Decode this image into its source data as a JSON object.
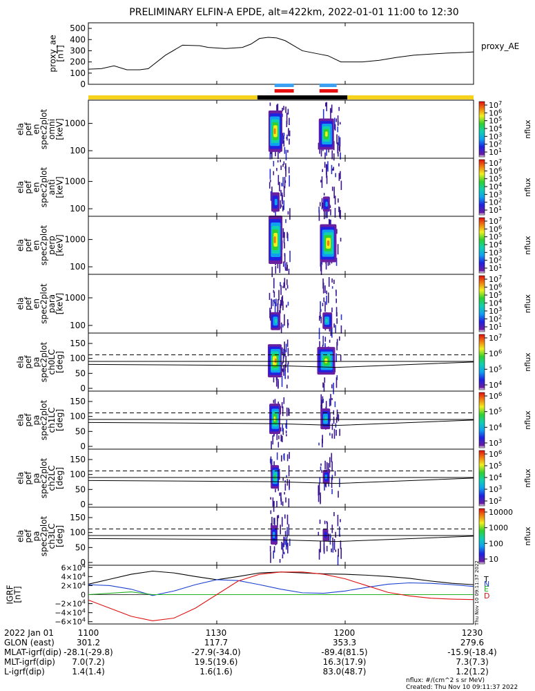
{
  "title": "PRELIMINARY ELFIN-A EPDE, alt=422km, 2022-01-01 11:00 to 12:30",
  "chart_data": [
    {
      "type": "line",
      "panel": "proxy_ae",
      "ylabel": [
        "proxy_ae",
        "[nT]"
      ],
      "legend": "proxy_AE",
      "yticks": [
        "500",
        "400",
        "300",
        "200",
        "100",
        "0"
      ],
      "ylim": [
        0,
        550
      ],
      "x_minutes": [
        0,
        3,
        6,
        9,
        12,
        14,
        18,
        22,
        26,
        28,
        32,
        36,
        38,
        40,
        42,
        44,
        46,
        50,
        54,
        56,
        59,
        62,
        64,
        68,
        72,
        76,
        80,
        84,
        88,
        90
      ],
      "values": [
        135,
        140,
        165,
        130,
        130,
        140,
        260,
        350,
        345,
        330,
        320,
        330,
        360,
        410,
        420,
        415,
        390,
        300,
        270,
        255,
        200,
        200,
        200,
        215,
        240,
        260,
        270,
        280,
        285,
        290
      ]
    },
    {
      "type": "bar",
      "panel": "science_zone_bars",
      "segments": [
        {
          "color": "#3da0f0",
          "from": 43.5,
          "to": 48
        },
        {
          "color": "#e81010",
          "from": 43.5,
          "to": 48
        },
        {
          "color": "#3da0f0",
          "from": 54,
          "to": 58
        },
        {
          "color": "#e81010",
          "from": 54,
          "to": 58.3
        }
      ],
      "colors": [
        "#3da0f0",
        "#e81010"
      ]
    },
    {
      "type": "bar",
      "panel": "sunlight_bar",
      "colors": [
        "#f7d21c",
        "#000000"
      ]
    },
    {
      "type": "heatmap",
      "panel": "spec_omni",
      "ylabel": [
        "ela",
        "pef",
        "en",
        "spec2plot",
        "omni",
        "[keV]"
      ],
      "yticks": [
        "1000",
        "100"
      ],
      "zlabel": "nflux",
      "zticks": [
        "10^7",
        "10^6",
        "10^5",
        "10^4",
        "10^3",
        "10^2",
        "10^1"
      ]
    },
    {
      "type": "heatmap",
      "panel": "spec_anti",
      "ylabel": [
        "ela",
        "pef",
        "en",
        "spec2plot",
        "anti",
        "[keV]"
      ],
      "yticks": [
        "1000",
        "100"
      ],
      "zlabel": "nflux",
      "zticks": [
        "10^7",
        "10^6",
        "10^5",
        "10^4",
        "10^3",
        "10^2",
        "10^1"
      ]
    },
    {
      "type": "heatmap",
      "panel": "spec_perp",
      "ylabel": [
        "ela",
        "pef",
        "en",
        "spec2plot",
        "perp",
        "[keV]"
      ],
      "yticks": [
        "1000",
        "100"
      ],
      "zlabel": "nflux",
      "zticks": [
        "10^7",
        "10^6",
        "10^5",
        "10^4",
        "10^3",
        "10^2",
        "10^1"
      ]
    },
    {
      "type": "heatmap",
      "panel": "spec_para",
      "ylabel": [
        "ela",
        "pef",
        "en",
        "spec2plot",
        "para",
        "[keV]"
      ],
      "yticks": [
        "1000",
        "100"
      ],
      "zlabel": "nflux",
      "zticks": [
        "10^7",
        "10^6",
        "10^5",
        "10^4",
        "10^3",
        "10^2",
        "10^1"
      ]
    },
    {
      "type": "heatmap",
      "panel": "pa_ch0",
      "ylabel": [
        "ela",
        "pef",
        "pa",
        "spec2plot",
        "ch0LC",
        "[deg]"
      ],
      "yticks": [
        "150",
        "100",
        "50",
        "0"
      ],
      "zlabel": "nflux",
      "zticks": [
        "10^7",
        "10^6",
        "10^5",
        "10^4"
      ]
    },
    {
      "type": "heatmap",
      "panel": "pa_ch1",
      "ylabel": [
        "ela",
        "pef",
        "pa",
        "spec2plot",
        "ch1LC",
        "[deg]"
      ],
      "yticks": [
        "150",
        "100",
        "50",
        "0"
      ],
      "zlabel": "nflux",
      "zticks": [
        "10^6",
        "10^5",
        "10^4",
        "10^3"
      ]
    },
    {
      "type": "heatmap",
      "panel": "pa_ch2",
      "ylabel": [
        "ela",
        "pef",
        "pa",
        "spec2plot",
        "ch2LC",
        "[deg]"
      ],
      "yticks": [
        "150",
        "100",
        "50",
        "0"
      ],
      "zlabel": "nflux",
      "zticks": [
        "10^6",
        "10^5",
        "10^4",
        "10^3",
        "10^2"
      ]
    },
    {
      "type": "heatmap",
      "panel": "pa_ch3",
      "ylabel": [
        "ela",
        "pef",
        "pa",
        "spec2plot",
        "ch3LC",
        "[deg]"
      ],
      "yticks": [
        "150",
        "100",
        "50",
        "0"
      ],
      "zlabel": "nflux",
      "zticks": [
        "10000",
        "1000",
        "100",
        "10"
      ]
    },
    {
      "type": "line",
      "panel": "igrf",
      "ylabel": [
        "IGRF",
        "[nT]"
      ],
      "yticks": [
        "6×10^4",
        "4×10^4",
        "2×10^4",
        "0",
        "−2×10^4",
        "−4×10^4",
        "−6×10^4"
      ],
      "ylim": [
        -65000,
        65000
      ],
      "x_minutes": [
        0,
        5,
        10,
        15,
        20,
        25,
        30,
        35,
        40,
        45,
        50,
        55,
        60,
        65,
        70,
        75,
        80,
        85,
        90
      ],
      "series": [
        {
          "name": "T",
          "color": "#000000",
          "values": [
            23000,
            34000,
            45000,
            52000,
            48000,
            40000,
            33000,
            40000,
            48000,
            50000,
            48000,
            46000,
            45000,
            43000,
            40000,
            36000,
            30000,
            25000,
            22000
          ]
        },
        {
          "name": "N",
          "color": "#1a40d0",
          "values": [
            22000,
            20000,
            12000,
            -2000,
            8000,
            22000,
            33000,
            31000,
            22000,
            12000,
            4000,
            3000,
            8000,
            16000,
            23000,
            26000,
            25000,
            22000,
            18000
          ]
        },
        {
          "name": "E",
          "color": "#20b020",
          "values": [
            0,
            3000,
            6000,
            0,
            0,
            0,
            0,
            0,
            0,
            0,
            0,
            0,
            0,
            0,
            0,
            0,
            0,
            0,
            0
          ]
        },
        {
          "name": "D",
          "color": "#e01010",
          "values": [
            -12000,
            -30000,
            -48000,
            -58000,
            -52000,
            -30000,
            0,
            30000,
            45000,
            50000,
            50000,
            45000,
            35000,
            20000,
            5000,
            -3000,
            -8000,
            -10000,
            -11000
          ]
        }
      ]
    }
  ],
  "x_axis": {
    "row_labels": [
      "2022 Jan 01",
      "GLON (east)",
      "MLAT-igrf(dip)",
      "MLT-igrf(dip)",
      "L-igrf(dip)"
    ],
    "columns": [
      {
        "values": [
          "1100",
          "301.2",
          "-28.1(-29.8)",
          "7.0(7.2)",
          "1.4(1.4)"
        ]
      },
      {
        "values": [
          "1130",
          "117.7",
          "-27.9(-34.0)",
          "19.5(19.6)",
          "1.6(1.6)"
        ]
      },
      {
        "values": [
          "1200",
          "353.3",
          "-89.4(81.5)",
          "16.3(17.9)",
          "83.0(48.7)"
        ]
      },
      {
        "values": [
          "1230",
          "279.6",
          "-15.9(-18.4)",
          "7.3(7.3)",
          "1.2(1.2)"
        ]
      }
    ]
  },
  "footer": {
    "units": "nflux: #/(cm^2 s sr MeV)",
    "created": "Created: Thu Nov 10 09:11:37 2022",
    "side_stamp": "Thu Nov 10 09:11:37 2022"
  }
}
